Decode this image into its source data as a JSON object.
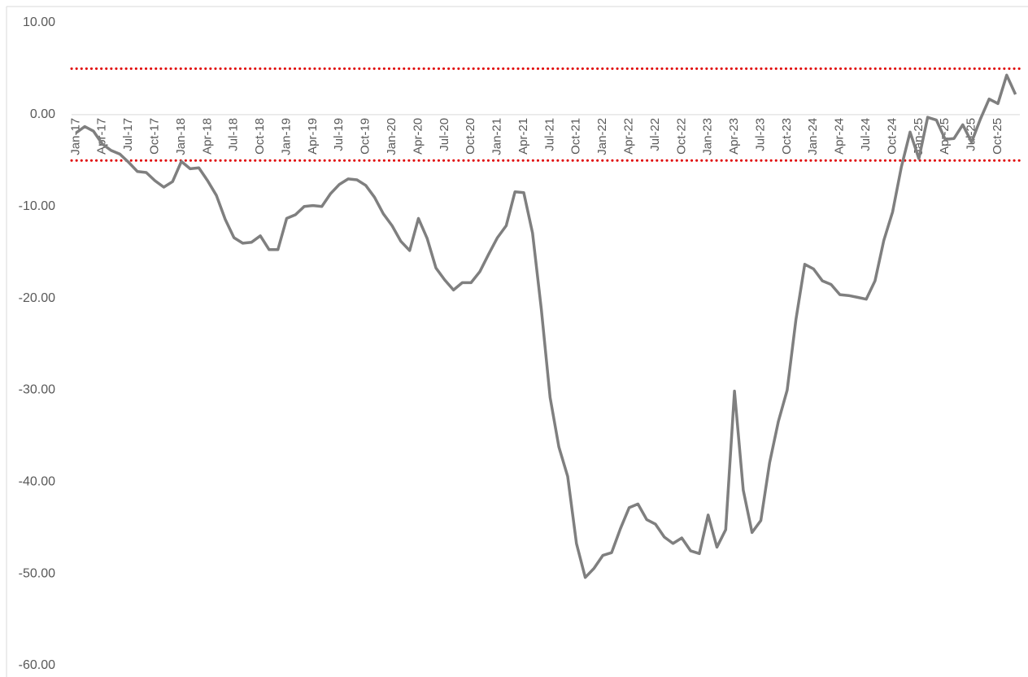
{
  "chart_data": {
    "type": "line",
    "categories": [
      "Jan-17",
      null,
      null,
      "Apr-17",
      null,
      null,
      "Jul-17",
      null,
      null,
      "Oct-17",
      null,
      null,
      "Jan-18",
      null,
      null,
      "Apr-18",
      null,
      null,
      "Jul-18",
      null,
      null,
      "Oct-18",
      null,
      null,
      "Jan-19",
      null,
      null,
      "Apr-19",
      null,
      null,
      "Jul-19",
      null,
      null,
      "Oct-19",
      null,
      null,
      "Jan-20",
      null,
      null,
      "Apr-20",
      null,
      null,
      "Jul-20",
      null,
      null,
      "Oct-20",
      null,
      null,
      "Jan-21",
      null,
      null,
      "Apr-21",
      null,
      null,
      "Jul-21",
      null,
      null,
      "Oct-21",
      null,
      null,
      "Jan-22",
      null,
      null,
      "Apr-22",
      null,
      null,
      "Jul-22",
      null,
      null,
      "Oct-22",
      null,
      null,
      "Jan-23",
      null,
      null,
      "Apr-23",
      null,
      null,
      "Jul-23",
      null,
      null,
      "Oct-23",
      null,
      null,
      "Jan-24",
      null,
      null,
      "Apr-24",
      null,
      null,
      "Jul-24",
      null,
      null,
      "Oct-24",
      null,
      null,
      "Jan-25",
      null,
      null,
      "Apr-25",
      null,
      null,
      "Jul-25",
      null,
      null,
      "Oct-25",
      null,
      null
    ],
    "series": [
      {
        "color": "#7f7f7f",
        "values": [
          -2.0,
          -1.3,
          -1.8,
          -3.2,
          -3.9,
          -4.3,
          -5.2,
          -6.2,
          -6.3,
          -7.2,
          -7.9,
          -7.3,
          -5.1,
          -5.9,
          -5.8,
          -7.2,
          -8.8,
          -11.4,
          -13.4,
          -14.0,
          -13.9,
          -13.2,
          -14.7,
          -14.7,
          -11.3,
          -10.9,
          -10.0,
          -9.9,
          -10.0,
          -8.6,
          -7.6,
          -7.0,
          -7.1,
          -7.7,
          -9.0,
          -10.8,
          -12.1,
          -13.8,
          -14.8,
          -11.3,
          -13.5,
          -16.7,
          -18.0,
          -19.1,
          -18.3,
          -18.3,
          -17.1,
          -15.2,
          -13.4,
          -12.1,
          -8.4,
          -8.5,
          -12.9,
          -21.2,
          -30.8,
          -36.2,
          -39.4,
          -46.7,
          -50.4,
          -49.4,
          -48.0,
          -47.7,
          -45.1,
          -42.8,
          -42.4,
          -44.1,
          -44.6,
          -46.0,
          -46.7,
          -46.1,
          -47.5,
          -47.8,
          -43.6,
          -47.1,
          -45.2,
          -30.1,
          -40.9,
          -45.5,
          -44.2,
          -37.9,
          -33.4,
          -30.0,
          -22.3,
          -16.3,
          -16.8,
          -18.1,
          -18.5,
          -19.6,
          -19.7,
          -19.9,
          -20.1,
          -18.1,
          -13.7,
          -10.6,
          -5.7,
          -1.9,
          -4.8,
          -0.3,
          -0.6,
          -2.7,
          -2.6,
          -1.1,
          -3.0,
          -0.5,
          1.7,
          1.2,
          4.3,
          2.2
        ]
      }
    ],
    "ylim": [
      -60,
      10
    ],
    "yticks": [
      {
        "value": 10,
        "label": "10.00"
      },
      {
        "value": 0,
        "label": "0.00"
      },
      {
        "value": -10,
        "label": "-10.00"
      },
      {
        "value": -20,
        "label": "-20.00"
      },
      {
        "value": -30,
        "label": "-30.00"
      },
      {
        "value": -40,
        "label": "-40.00"
      },
      {
        "value": -50,
        "label": "-50.00"
      },
      {
        "value": -60,
        "label": "-60.00"
      }
    ],
    "hlines": [
      5,
      -5
    ],
    "hline_color": "#e00000"
  }
}
